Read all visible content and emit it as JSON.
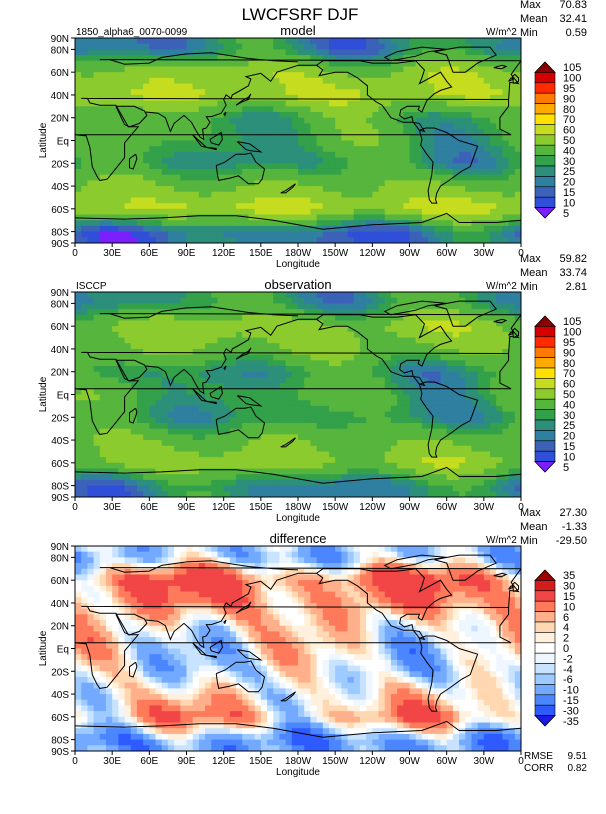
{
  "title": "LWCFSRF DJF",
  "panels": [
    {
      "key": "model",
      "title": "model",
      "left_label": "1850_alpha6_0070-0099",
      "units": "W/m^2",
      "stats": [
        [
          "Max",
          "70.83"
        ],
        [
          "Mean",
          "32.41"
        ],
        [
          "Min",
          "0.59"
        ]
      ],
      "palette": "model",
      "colorbar_labels": [
        "105",
        "100",
        "95",
        "90",
        "80",
        "70",
        "60",
        "50",
        "40",
        "30",
        "25",
        "20",
        "15",
        "10",
        "5"
      ]
    },
    {
      "key": "observation",
      "title": "observation",
      "left_label": "ISCCP",
      "units": "W/m^2",
      "stats": [
        [
          "Max",
          "59.82"
        ],
        [
          "Mean",
          "33.74"
        ],
        [
          "Min",
          "2.81"
        ]
      ],
      "palette": "model",
      "colorbar_labels": [
        "105",
        "100",
        "95",
        "90",
        "80",
        "70",
        "60",
        "50",
        "40",
        "30",
        "25",
        "20",
        "15",
        "10",
        "5"
      ]
    },
    {
      "key": "difference",
      "title": "difference",
      "left_label": "",
      "units": "W/m^2",
      "stats": [
        [
          "Max",
          "27.30"
        ],
        [
          "Mean",
          "-1.33"
        ],
        [
          "Min",
          "-29.50"
        ]
      ],
      "palette": "diff",
      "colorbar_labels": [
        "35",
        "30",
        "15",
        "10",
        "6",
        "4",
        "2",
        "0",
        "-2",
        "-4",
        "-6",
        "-10",
        "-15",
        "-30",
        "-35"
      ],
      "footer_stats": [
        [
          "RMSE",
          "9.51"
        ],
        [
          "CORR",
          "0.82"
        ]
      ]
    }
  ],
  "axes": {
    "xlabel": "Longitude",
    "ylabel": "Latitude",
    "xticks": [
      "0",
      "30E",
      "60E",
      "90E",
      "120E",
      "150E",
      "180W",
      "150W",
      "120W",
      "90W",
      "60W",
      "30W",
      "0"
    ],
    "yticks": [
      "90N",
      "80N",
      "60N",
      "40N",
      "20N",
      "Eq",
      "20S",
      "40S",
      "60S",
      "80S",
      "90S"
    ],
    "ytick_lat": [
      90,
      80,
      60,
      40,
      20,
      0,
      -20,
      -40,
      -60,
      -80,
      -90
    ]
  },
  "colors": {
    "model_palette": [
      "#7b1fff",
      "#2f4fd9",
      "#3c61b8",
      "#2f7fa0",
      "#2b8f7a",
      "#33a04a",
      "#56b53c",
      "#8ccb2e",
      "#c6dc1e",
      "#ffe000",
      "#ffaa00",
      "#ff7a00",
      "#ff2a00",
      "#d40000",
      "#8b0000"
    ],
    "diff_palette": [
      "#1a1ae0",
      "#2e5bff",
      "#4b86ff",
      "#73aaff",
      "#9ecbff",
      "#c8e3ff",
      "#eef6ff",
      "#ffffff",
      "#fff1dd",
      "#ffd7b0",
      "#ffb08a",
      "#ff7a5a",
      "#f24646",
      "#d41e1e",
      "#a00000"
    ],
    "missing": "#ffffff",
    "coast": "#000000"
  },
  "chart_data": [
    {
      "type": "heatmap",
      "name": "model",
      "title": "model",
      "xlabel": "Longitude",
      "ylabel": "Latitude",
      "xlim": [
        0,
        360
      ],
      "ylim": [
        -90,
        90
      ],
      "min": 0.59,
      "max": 70.83,
      "mean": 32.41,
      "zonal_mean_profile": {
        "lat": [
          80,
          60,
          40,
          20,
          0,
          -20,
          -40,
          -60,
          -80
        ],
        "value": [
          20,
          45,
          50,
          30,
          30,
          25,
          40,
          52,
          15
        ]
      }
    },
    {
      "type": "heatmap",
      "name": "observation",
      "title": "observation",
      "xlabel": "Longitude",
      "ylabel": "Latitude",
      "xlim": [
        0,
        360
      ],
      "ylim": [
        -90,
        90
      ],
      "min": 2.81,
      "max": 59.82,
      "mean": 33.74,
      "zonal_mean_profile": {
        "lat": [
          80,
          60,
          40,
          20,
          0,
          -20,
          -40,
          -60,
          -80
        ],
        "value": [
          25,
          45,
          40,
          25,
          30,
          25,
          38,
          45,
          20
        ]
      }
    },
    {
      "type": "heatmap",
      "name": "difference",
      "title": "difference",
      "xlabel": "Longitude",
      "ylabel": "Latitude",
      "xlim": [
        0,
        360
      ],
      "ylim": [
        -90,
        90
      ],
      "min": -29.5,
      "max": 27.3,
      "mean": -1.33,
      "rmse": 9.51,
      "corr": 0.82,
      "zonal_mean_profile": {
        "lat": [
          80,
          60,
          40,
          20,
          0,
          -20,
          -40,
          -60,
          -80
        ],
        "value": [
          -5,
          15,
          10,
          3,
          0,
          -2,
          2,
          8,
          -10
        ]
      }
    }
  ]
}
